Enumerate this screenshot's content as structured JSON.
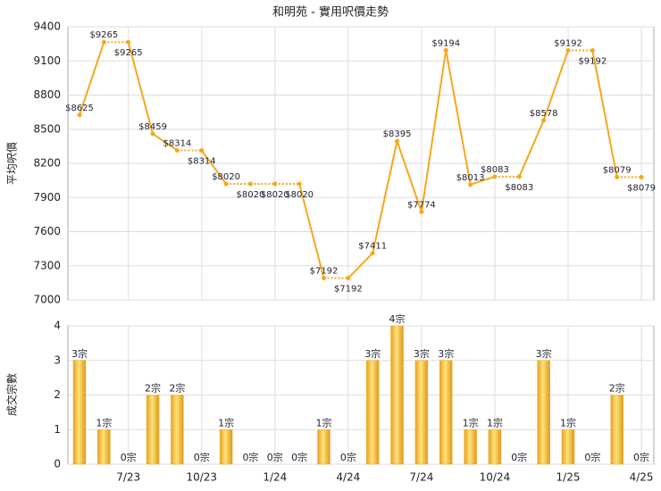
{
  "chart_data": [
    {
      "type": "line",
      "title": "和明苑 - 實用呎價走勢",
      "y_label": "平均呎價",
      "color": "#f5a81c",
      "values": [
        8625,
        9265,
        9265,
        8459,
        8314,
        8314,
        8020,
        8020,
        8020,
        8020,
        7192,
        7192,
        7411,
        8395,
        7774,
        9194,
        8013,
        8083,
        8083,
        8578,
        9192,
        9192,
        8079,
        8079
      ],
      "value_labels": [
        "$8625",
        "$9265",
        "$9265",
        "$8459",
        "$8314",
        "$8314",
        "$8020",
        "$8020",
        "$8020",
        "$8020",
        "$7192",
        "$7192",
        "$7411",
        "$8395",
        "$7774",
        "$9194",
        "$8013",
        "$8083",
        "$8083",
        "$8578",
        "$9192",
        "$9192",
        "$8079",
        "$8079"
      ],
      "ylim": [
        7000,
        9400
      ],
      "yticks": [
        7000,
        7300,
        7600,
        7900,
        8200,
        8500,
        8800,
        9100,
        9400
      ],
      "grid": true
    },
    {
      "type": "bar",
      "y_label": "成交宗數",
      "color": "#f0b030",
      "categories": [
        null,
        null,
        "7/23",
        null,
        null,
        "10/23",
        null,
        null,
        "1/24",
        null,
        null,
        "4/24",
        null,
        null,
        "7/24",
        null,
        null,
        "10/24",
        null,
        null,
        "1/25",
        null,
        null,
        "4/25"
      ],
      "values": [
        3,
        1,
        0,
        2,
        2,
        0,
        1,
        0,
        0,
        0,
        1,
        0,
        3,
        4,
        3,
        3,
        1,
        1,
        0,
        3,
        1,
        0,
        2,
        0
      ],
      "value_labels": [
        "3宗",
        "1宗",
        "0宗",
        "2宗",
        "2宗",
        "0宗",
        "1宗",
        "0宗",
        "0宗",
        "0宗",
        "1宗",
        "0宗",
        "3宗",
        "4宗",
        "3宗",
        "3宗",
        "1宗",
        "1宗",
        "0宗",
        "3宗",
        "1宗",
        "0宗",
        "2宗",
        "0宗"
      ],
      "ylim": [
        0,
        4
      ],
      "yticks": [
        0,
        1,
        2,
        3,
        4
      ],
      "grid": true
    }
  ]
}
